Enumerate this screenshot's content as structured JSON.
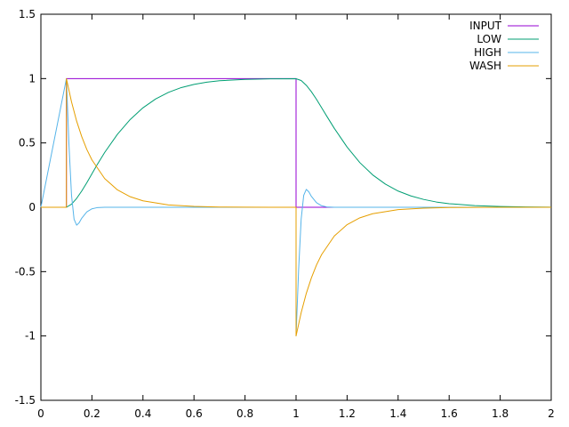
{
  "chart_data": {
    "type": "line",
    "title": "",
    "xlabel": "",
    "ylabel": "",
    "xlim": [
      0,
      2
    ],
    "ylim": [
      -1.5,
      1.5
    ],
    "grid": false,
    "legend_placement": "top-right",
    "x_ticks": [
      0,
      0.2,
      0.4,
      0.6,
      0.8,
      1,
      1.2,
      1.4,
      1.6,
      1.8,
      2
    ],
    "x_tick_labels": [
      "0",
      "0.2",
      "0.4",
      "0.6",
      "0.8",
      "1",
      "1.2",
      "1.4",
      "1.6",
      "1.8",
      "2"
    ],
    "y_ticks": [
      -1.5,
      -1,
      -0.5,
      0,
      0.5,
      1,
      1.5
    ],
    "y_tick_labels": [
      "-1.5",
      "-1",
      "-0.5",
      "0",
      "0.5",
      "1",
      "1.5"
    ],
    "series": [
      {
        "name": "INPUT",
        "color": "#9400d3",
        "x": [
          0,
          0.1,
          0.1,
          1.0,
          1.0,
          2.0
        ],
        "y": [
          0,
          0,
          1,
          1,
          0,
          0
        ]
      },
      {
        "name": "LOW",
        "color": "#009e73",
        "x": [
          0,
          0.1,
          0.12,
          0.14,
          0.16,
          0.18,
          0.2,
          0.22,
          0.25,
          0.3,
          0.35,
          0.4,
          0.45,
          0.5,
          0.55,
          0.6,
          0.65,
          0.7,
          0.8,
          0.9,
          1.0,
          1.02,
          1.04,
          1.06,
          1.08,
          1.1,
          1.12,
          1.15,
          1.2,
          1.25,
          1.3,
          1.35,
          1.4,
          1.45,
          1.5,
          1.55,
          1.6,
          1.7,
          1.8,
          1.9,
          2.0
        ],
        "y": [
          0,
          0,
          0.024,
          0.069,
          0.126,
          0.191,
          0.26,
          0.329,
          0.426,
          0.567,
          0.682,
          0.773,
          0.842,
          0.893,
          0.93,
          0.955,
          0.972,
          0.983,
          0.994,
          0.998,
          0.999,
          0.985,
          0.948,
          0.898,
          0.839,
          0.774,
          0.709,
          0.613,
          0.468,
          0.347,
          0.252,
          0.18,
          0.126,
          0.088,
          0.061,
          0.041,
          0.028,
          0.013,
          0.006,
          0.003,
          0.001
        ]
      },
      {
        "name": "HIGH",
        "color": "#56b4e9",
        "x": [
          0,
          0.1,
          0.11,
          0.12,
          0.13,
          0.14,
          0.15,
          0.16,
          0.18,
          0.2,
          0.22,
          0.25,
          0.3,
          0.4,
          1.0,
          1.0,
          1.01,
          1.02,
          1.03,
          1.04,
          1.05,
          1.06,
          1.08,
          1.1,
          1.12,
          1.15,
          1.2,
          1.3,
          2.0
        ],
        "y": [
          0,
          1,
          0.486,
          0.093,
          -0.093,
          -0.139,
          -0.12,
          -0.085,
          -0.036,
          -0.012,
          -0.003,
          0,
          0,
          0,
          0,
          -1,
          -0.486,
          -0.093,
          0.093,
          0.139,
          0.12,
          0.085,
          0.036,
          0.012,
          0.003,
          0,
          0,
          0,
          0
        ]
      },
      {
        "name": "WASH",
        "color": "#e69f00",
        "x": [
          0,
          0.1,
          0.1,
          0.12,
          0.14,
          0.16,
          0.18,
          0.2,
          0.25,
          0.3,
          0.35,
          0.4,
          0.5,
          0.6,
          0.7,
          0.8,
          0.9,
          1.0,
          1.0,
          1.02,
          1.04,
          1.06,
          1.08,
          1.1,
          1.15,
          1.2,
          1.25,
          1.3,
          1.4,
          1.5,
          1.6,
          1.7,
          1.8,
          1.9,
          2.0
        ],
        "y": [
          0,
          0,
          1,
          0.819,
          0.67,
          0.549,
          0.449,
          0.368,
          0.223,
          0.135,
          0.082,
          0.05,
          0.018,
          0.007,
          0.002,
          0.001,
          0,
          0,
          -1,
          -0.819,
          -0.67,
          -0.549,
          -0.449,
          -0.368,
          -0.223,
          -0.135,
          -0.082,
          -0.05,
          -0.018,
          -0.007,
          -0.002,
          -0.001,
          0,
          0,
          0
        ]
      }
    ]
  }
}
